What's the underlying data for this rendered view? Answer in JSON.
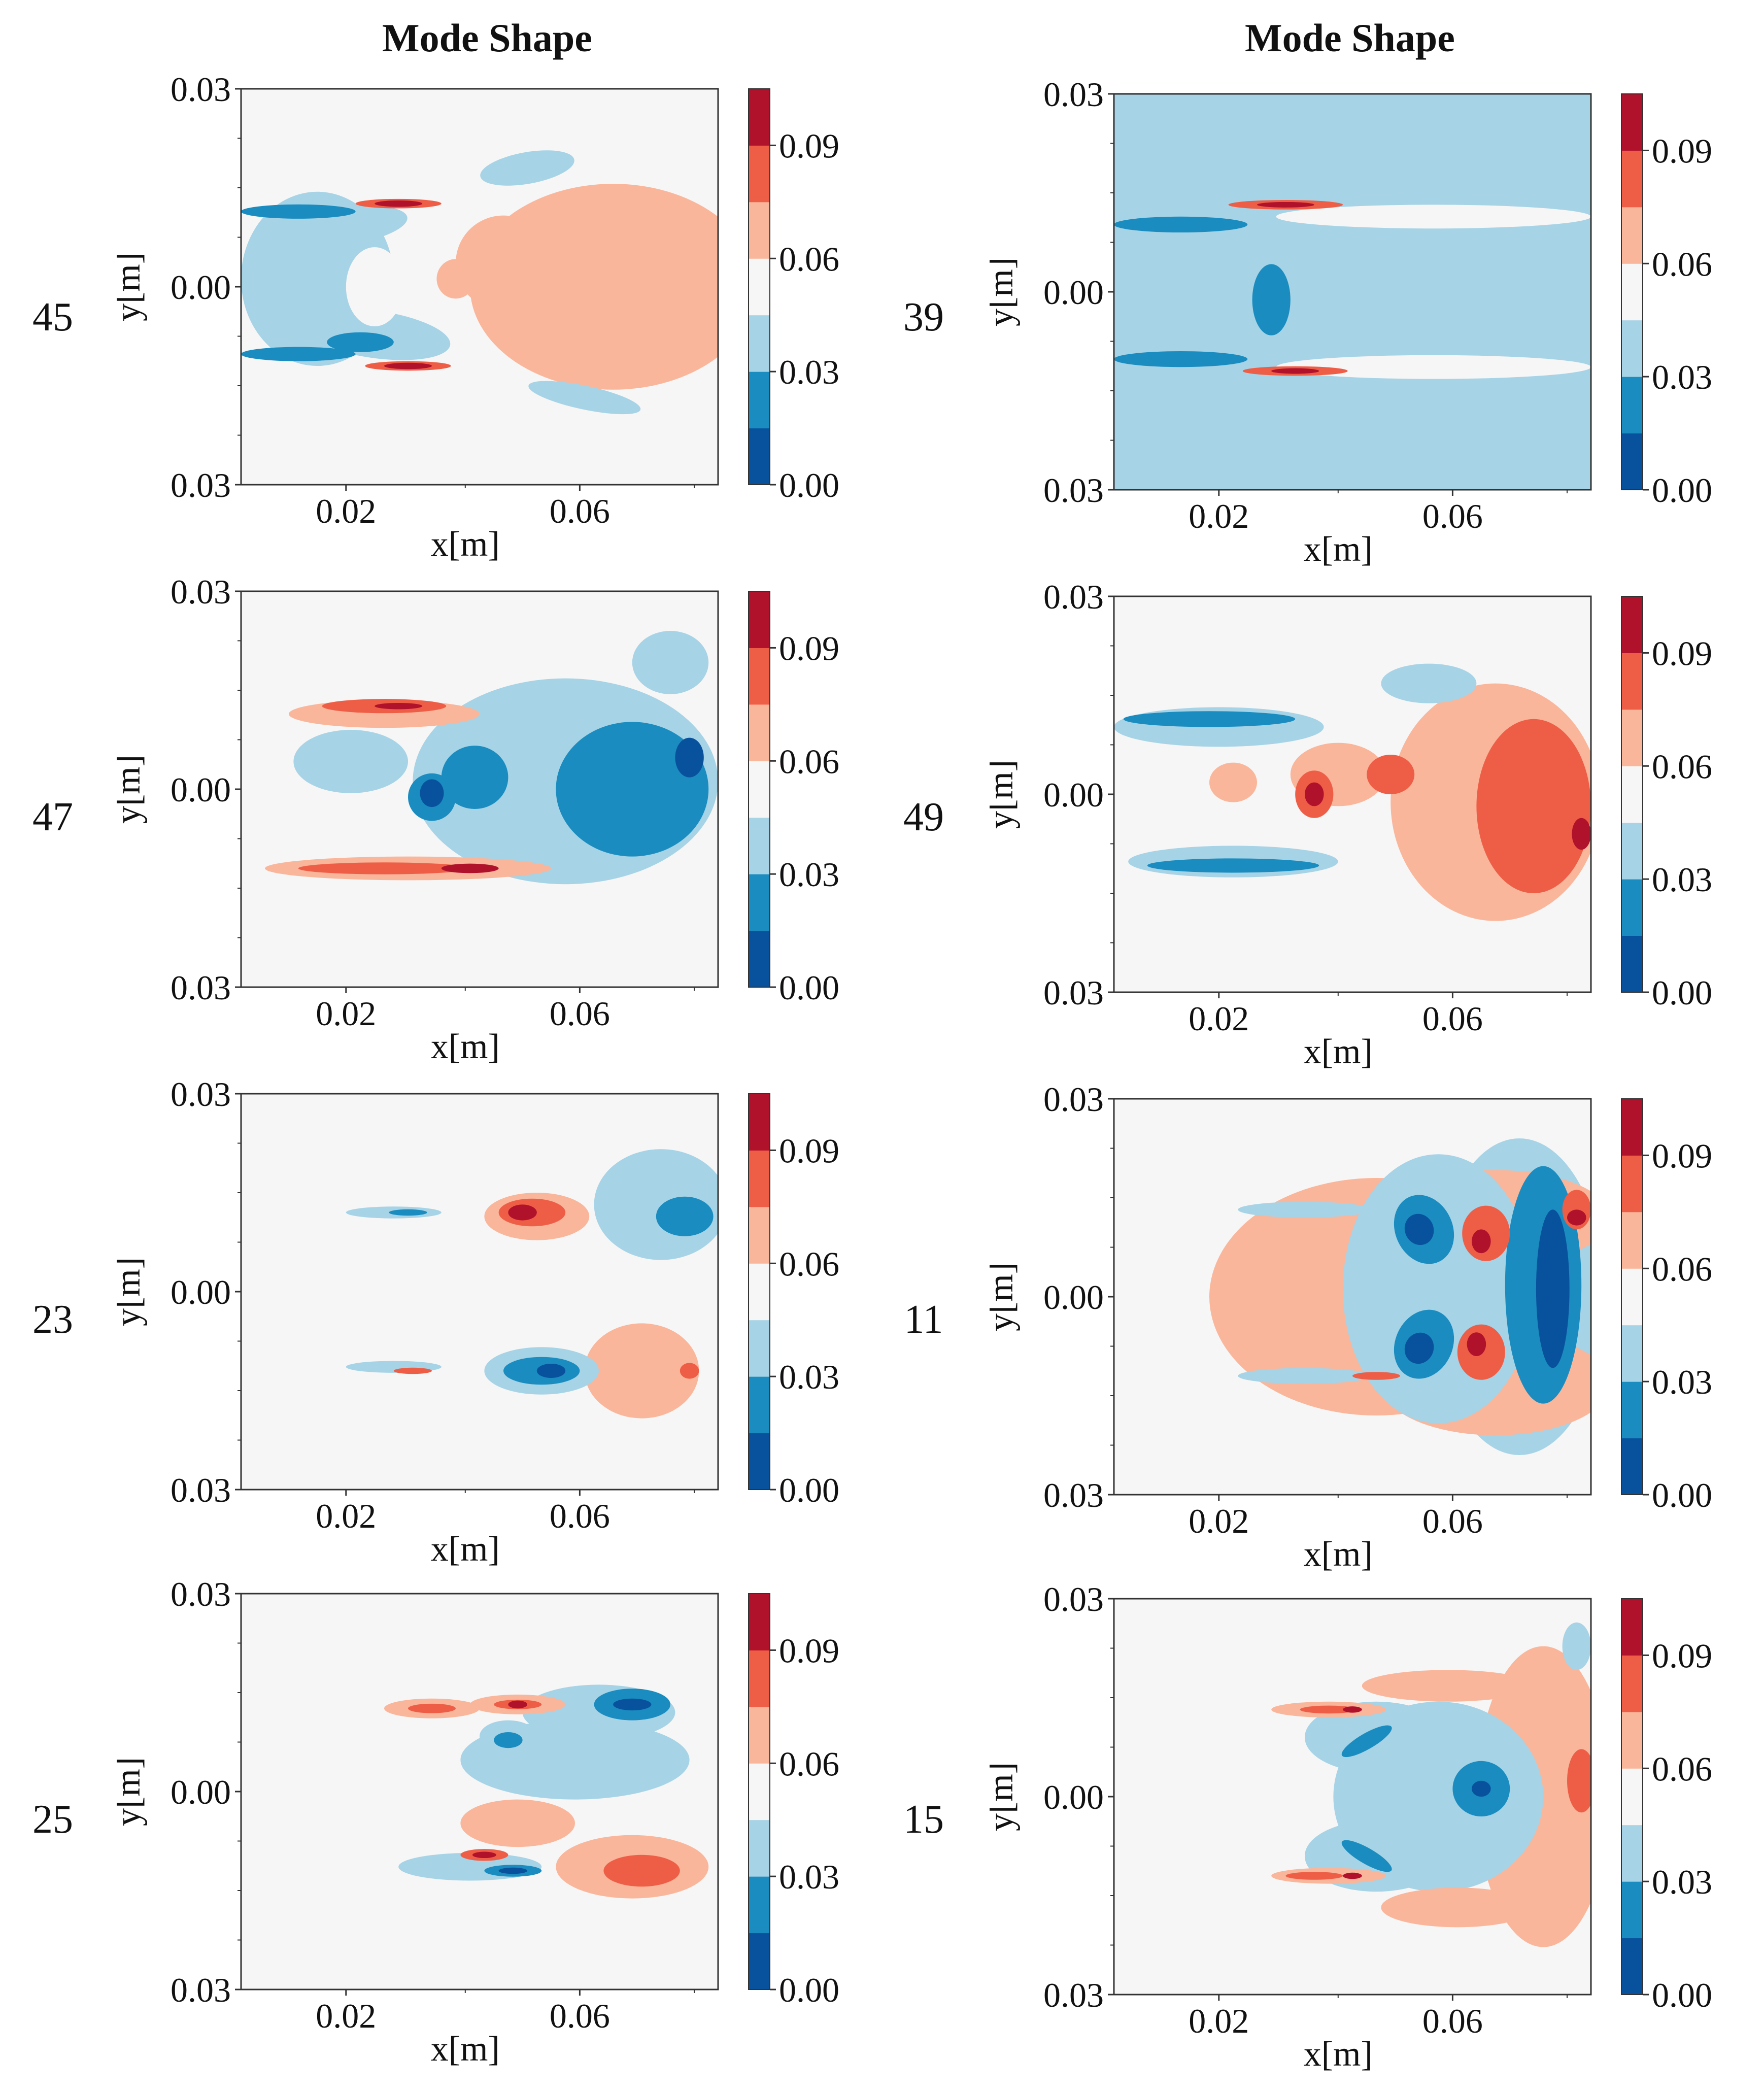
{
  "column_titles": [
    "Mode Shape",
    "Mode Shape"
  ],
  "colorbar": {
    "ticks": [
      "0.00",
      "0.03",
      "0.06",
      "0.09"
    ],
    "levels": [
      "#08519c",
      "#1a8cbf",
      "#a6d3e6",
      "#f7f6f6",
      "#f9b69b",
      "#ee5e46",
      "#b0112b"
    ]
  },
  "axes": {
    "xlabel": "x[m]",
    "ylabel": "y[m]",
    "xticks": [
      "0.02",
      "0.06"
    ],
    "yticks": [
      "0.03",
      "0.00",
      "0.03"
    ]
  },
  "chart_data": [
    {
      "type": "heatmap",
      "title": "Mode Shape",
      "mode": "45",
      "xlabel": "x[m]",
      "ylabel": "y[m]",
      "xlim": [
        0.0,
        0.08
      ],
      "ylim": [
        -0.03,
        0.03
      ],
      "clim": [
        0.0,
        0.105
      ],
      "background_level": 3
    },
    {
      "type": "heatmap",
      "title": "Mode Shape",
      "mode": "39",
      "xlabel": "x[m]",
      "ylabel": "y[m]",
      "xlim": [
        0.0,
        0.08
      ],
      "ylim": [
        -0.03,
        0.03
      ],
      "clim": [
        0.0,
        0.105
      ],
      "background_level": 2
    },
    {
      "type": "heatmap",
      "title": "",
      "mode": "47",
      "xlabel": "x[m]",
      "ylabel": "y[m]",
      "xlim": [
        0.0,
        0.08
      ],
      "ylim": [
        -0.03,
        0.03
      ],
      "clim": [
        0.0,
        0.105
      ],
      "background_level": 3
    },
    {
      "type": "heatmap",
      "title": "",
      "mode": "49",
      "xlabel": "x[m]",
      "ylabel": "y[m]",
      "xlim": [
        0.0,
        0.08
      ],
      "ylim": [
        -0.03,
        0.03
      ],
      "clim": [
        0.0,
        0.105
      ],
      "background_level": 3
    },
    {
      "type": "heatmap",
      "title": "",
      "mode": "23",
      "xlabel": "x[m]",
      "ylabel": "y[m]",
      "xlim": [
        0.0,
        0.08
      ],
      "ylim": [
        -0.03,
        0.03
      ],
      "clim": [
        0.0,
        0.105
      ],
      "background_level": 3
    },
    {
      "type": "heatmap",
      "title": "",
      "mode": "11",
      "xlabel": "x[m]",
      "ylabel": "y[m]",
      "xlim": [
        0.0,
        0.08
      ],
      "ylim": [
        -0.03,
        0.03
      ],
      "clim": [
        0.0,
        0.105
      ],
      "background_level": 3
    },
    {
      "type": "heatmap",
      "title": "",
      "mode": "25",
      "xlabel": "x[m]",
      "ylabel": "y[m]",
      "xlim": [
        0.0,
        0.08
      ],
      "ylim": [
        -0.03,
        0.03
      ],
      "clim": [
        0.0,
        0.105
      ],
      "background_level": 3
    },
    {
      "type": "heatmap",
      "title": "",
      "mode": "15",
      "xlabel": "x[m]",
      "ylabel": "y[m]",
      "xlim": [
        0.0,
        0.08
      ],
      "ylim": [
        -0.03,
        0.03
      ],
      "clim": [
        0.0,
        0.105
      ],
      "background_level": 3
    }
  ]
}
